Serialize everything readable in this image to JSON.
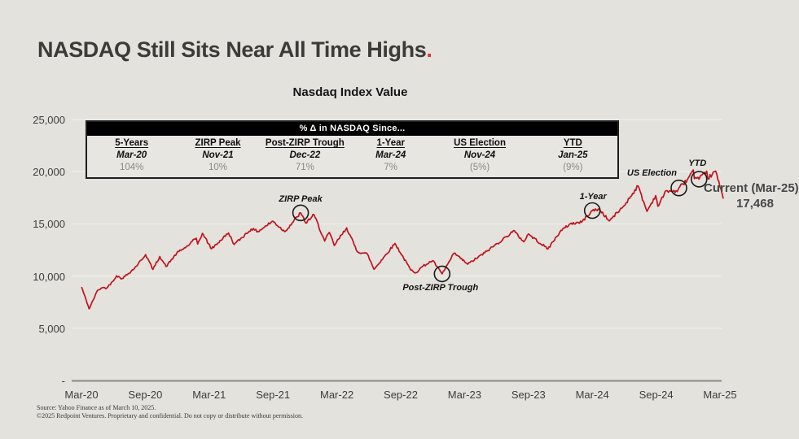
{
  "title": {
    "text": "NASDAQ Still Sits Near All Time Highs",
    "period": "."
  },
  "chart_title": "Nasdaq Index Value",
  "table": {
    "header": "% Δ in NASDAQ Since...",
    "columns": [
      {
        "label": "5-Years",
        "date": "Mar-20",
        "value": "104%"
      },
      {
        "label": "ZIRP Peak",
        "date": "Nov-21",
        "value": "10%"
      },
      {
        "label": "Post-ZIRP Trough",
        "date": "Dec-22",
        "value": "71%"
      },
      {
        "label": "1-Year",
        "date": "Mar-24",
        "value": "7%"
      },
      {
        "label": "US Election",
        "date": "Nov-24",
        "value": "(5%)"
      },
      {
        "label": "YTD",
        "date": "Jan-25",
        "value": "(9%)"
      }
    ]
  },
  "chart_data": {
    "type": "line",
    "title": "Nasdaq Index Value",
    "ylim": [
      0,
      25000
    ],
    "grid": true,
    "legend": false,
    "y_ticks": [
      {
        "value": 25000,
        "label": "25,000"
      },
      {
        "value": 20000,
        "label": "20,000"
      },
      {
        "value": 15000,
        "label": "15,000"
      },
      {
        "value": 10000,
        "label": "10,000"
      },
      {
        "value": 5000,
        "label": "5,000"
      },
      {
        "value": 0,
        "label": "-"
      }
    ],
    "x_ticks": [
      "Mar-20",
      "Sep-20",
      "Mar-21",
      "Sep-21",
      "Mar-22",
      "Sep-22",
      "Mar-23",
      "Sep-23",
      "Mar-24",
      "Sep-24",
      "Mar-25"
    ],
    "series": [
      {
        "name": "Nasdaq Index Value",
        "color": "#c0131c",
        "points": [
          [
            "2020-03-02",
            8900
          ],
          [
            "2020-03-23",
            6861
          ],
          [
            "2020-04-17",
            8650
          ],
          [
            "2020-04-30",
            8890
          ],
          [
            "2020-05-13",
            8863
          ],
          [
            "2020-05-29",
            9490
          ],
          [
            "2020-06-10",
            10020
          ],
          [
            "2020-06-26",
            9757
          ],
          [
            "2020-07-31",
            10745
          ],
          [
            "2020-09-02",
            12056
          ],
          [
            "2020-09-23",
            10633
          ],
          [
            "2020-10-12",
            11876
          ],
          [
            "2020-10-30",
            10912
          ],
          [
            "2020-11-30",
            12199
          ],
          [
            "2020-12-31",
            12888
          ],
          [
            "2021-01-25",
            13636
          ],
          [
            "2021-01-29",
            13071
          ],
          [
            "2021-02-12",
            14095
          ],
          [
            "2021-03-08",
            12609
          ],
          [
            "2021-04-26",
            14139
          ],
          [
            "2021-05-12",
            13032
          ],
          [
            "2021-06-30",
            14504
          ],
          [
            "2021-07-19",
            14275
          ],
          [
            "2021-08-31",
            15259
          ],
          [
            "2021-10-04",
            14256
          ],
          [
            "2021-11-19",
            16057
          ],
          [
            "2021-12-03",
            15086
          ],
          [
            "2021-12-27",
            15871
          ],
          [
            "2022-01-27",
            13353
          ],
          [
            "2022-02-10",
            14186
          ],
          [
            "2022-02-24",
            12938
          ],
          [
            "2022-03-29",
            14620
          ],
          [
            "2022-04-29",
            12335
          ],
          [
            "2022-05-27",
            12131
          ],
          [
            "2022-06-16",
            10646
          ],
          [
            "2022-08-15",
            13128
          ],
          [
            "2022-09-30",
            10576
          ],
          [
            "2022-10-14",
            10321
          ],
          [
            "2022-11-01",
            10890
          ],
          [
            "2022-12-01",
            11482
          ],
          [
            "2022-12-28",
            10213
          ],
          [
            "2023-02-02",
            12201
          ],
          [
            "2023-03-10",
            11139
          ],
          [
            "2023-04-28",
            12227
          ],
          [
            "2023-06-30",
            13788
          ],
          [
            "2023-07-19",
            14358
          ],
          [
            "2023-08-18",
            13291
          ],
          [
            "2023-09-01",
            14032
          ],
          [
            "2023-10-26",
            12595
          ],
          [
            "2023-11-30",
            14226
          ],
          [
            "2023-12-29",
            15011
          ],
          [
            "2024-01-31",
            15164
          ],
          [
            "2024-03-01",
            16275
          ],
          [
            "2024-03-21",
            16401
          ],
          [
            "2024-04-19",
            15282
          ],
          [
            "2024-05-31",
            16735
          ],
          [
            "2024-07-10",
            18647
          ],
          [
            "2024-08-05",
            16200
          ],
          [
            "2024-08-30",
            17713
          ],
          [
            "2024-09-06",
            16691
          ],
          [
            "2024-09-30",
            18189
          ],
          [
            "2024-10-31",
            18095
          ],
          [
            "2024-11-05",
            18439
          ],
          [
            "2024-11-29",
            19218
          ],
          [
            "2024-12-16",
            20174
          ],
          [
            "2024-12-19",
            19338
          ],
          [
            "2025-01-02",
            19281
          ],
          [
            "2025-01-24",
            20054
          ],
          [
            "2025-01-27",
            19341
          ],
          [
            "2025-02-19",
            20056
          ],
          [
            "2025-03-10",
            17468
          ]
        ]
      }
    ],
    "annotations": [
      {
        "label": "ZIRP Peak",
        "date": "2021-11-19",
        "value": 16057,
        "circled": true
      },
      {
        "label": "Post-ZIRP Trough",
        "date": "2022-12-28",
        "value": 10213,
        "circled": true
      },
      {
        "label": "1-Year",
        "date": "2024-03-01",
        "value": 16275,
        "circled": true
      },
      {
        "label": "US Election",
        "date": "2024-11-05",
        "value": 18439,
        "circled": true
      },
      {
        "label": "YTD",
        "date": "2025-01-02",
        "value": 19281,
        "circled": true
      }
    ],
    "current": {
      "label": "Current (Mar-25)",
      "value": "17,468"
    }
  },
  "footer": {
    "line1": "Source: Yahoo Finance as of March 10, 2025.",
    "line2": "©2025 Redpoint Ventures. Proprietary and confidential. Do not copy or distribute without permission."
  },
  "colors": {
    "background": "#e4e2dd",
    "accent_red": "#e5332e",
    "line_red": "#c0131c",
    "grid": "#efeeea",
    "axis": "#8a8882",
    "text_dark": "#3d3b38",
    "value_gray": "#8b8980"
  }
}
